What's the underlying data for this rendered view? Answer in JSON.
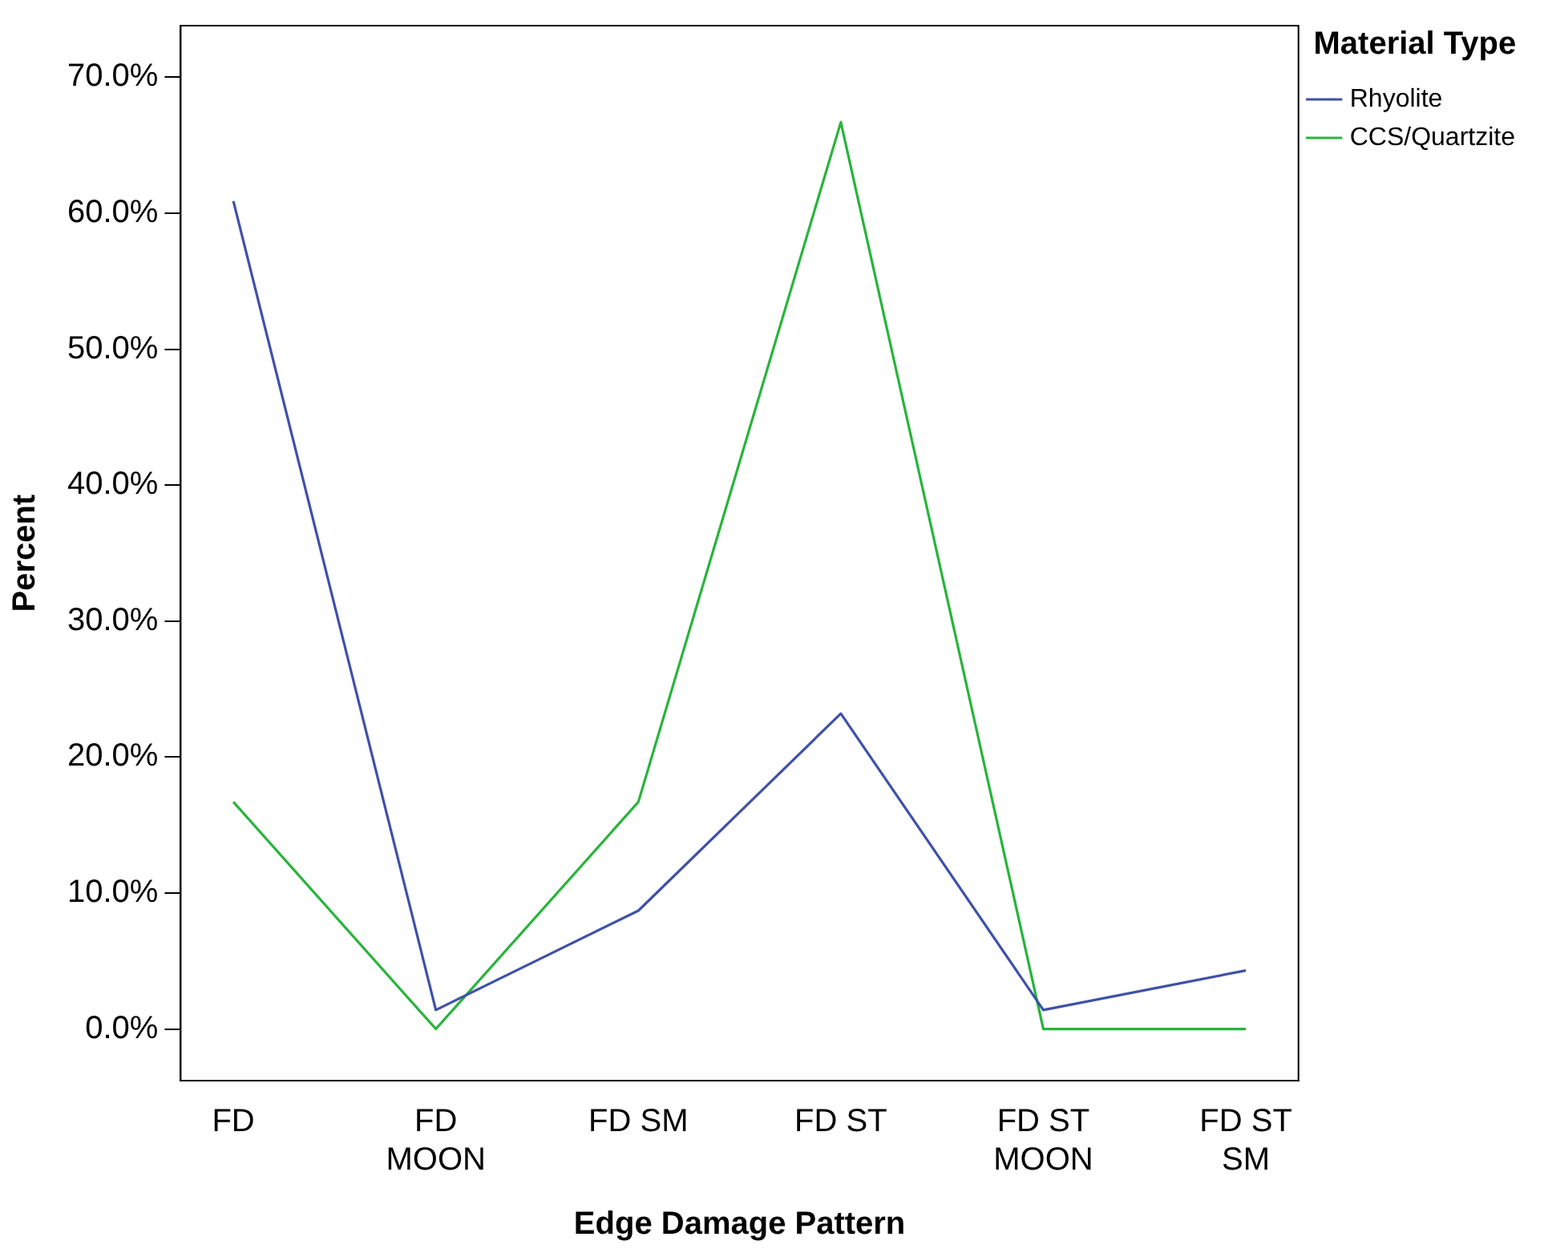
{
  "chart_data": {
    "type": "line",
    "xlabel": "Edge Damage Pattern",
    "ylabel": "Percent",
    "legend_title": "Material Type",
    "legend": "top right",
    "grid": false,
    "marker": "none",
    "line_style": "solid",
    "categories": [
      "FD",
      "FD MOON",
      "FD SM",
      "FD ST",
      "FD ST MOON",
      "FD ST SM"
    ],
    "ylim": [
      -3.8,
      73.8
    ],
    "yticks": [
      {
        "value": 0,
        "label": "0.0%"
      },
      {
        "value": 10,
        "label": "10.0%"
      },
      {
        "value": 20,
        "label": "20.0%"
      },
      {
        "value": 30,
        "label": "30.0%"
      },
      {
        "value": 40,
        "label": "40.0%"
      },
      {
        "value": 50,
        "label": "50.0%"
      },
      {
        "value": 60,
        "label": "60.0%"
      },
      {
        "value": 70,
        "label": "70.0%"
      }
    ],
    "series": [
      {
        "name": "Rhyolite",
        "color": "#3f51a8",
        "values": [
          60.9,
          1.4,
          8.7,
          23.2,
          1.4,
          4.3
        ]
      },
      {
        "name": "CCS/Quartzite",
        "color": "#28b43c",
        "values": [
          16.7,
          0,
          16.7,
          66.7,
          0,
          0
        ]
      }
    ]
  }
}
